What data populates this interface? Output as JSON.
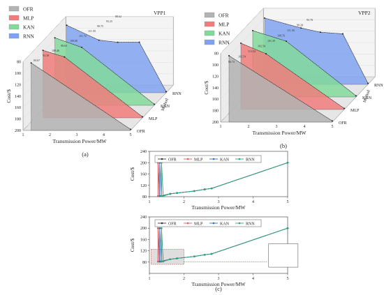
{
  "chart_data": [
    {
      "type": "area",
      "panel": "a",
      "title": "VPP1",
      "xlabel": "Transmission Power/MW",
      "ylabel": "Cost/$",
      "zlabel": "Method",
      "xlim": [
        1,
        5
      ],
      "ylim": [
        80,
        200
      ],
      "x_ticks": [
        "1",
        "2",
        "3",
        "4",
        "5"
      ],
      "y_ticks": [
        "80",
        "100",
        "120",
        "140",
        "160",
        "180",
        "200"
      ],
      "methods": [
        "OFR",
        "MLP",
        "KAN",
        "RNN"
      ],
      "colors": [
        "#b3b3b3",
        "#f07c7c",
        "#82d99b",
        "#7fa2f0"
      ],
      "series": [
        {
          "name": "OFR",
          "x": [
            1.3,
            5.0
          ],
          "y": [
            82,
            198
          ]
        },
        {
          "name": "MLP",
          "x": [
            1.3,
            2.1,
            5.0
          ],
          "y": [
            82,
            93.38,
            198
          ]
        },
        {
          "name": "KAN",
          "x": [
            1.3,
            2.3,
            5.0
          ],
          "y": [
            82,
            98.63,
            198
          ]
        },
        {
          "name": "RNN",
          "x": [
            1.3,
            2.5,
            3.2,
            4.0,
            5.0
          ],
          "y": [
            82,
            108.08,
            111.72,
            111.59,
            198
          ]
        }
      ],
      "labels": [
        "84.67",
        "93.38",
        "108.46",
        "98.63",
        "108.08",
        "111.72",
        "111.59",
        "99.75",
        "93.25",
        "88.62"
      ],
      "legend": "top-left"
    },
    {
      "type": "area",
      "panel": "b",
      "title": "VPP2",
      "xlabel": "Transmission Power/MW",
      "ylabel": "Cost/$",
      "zlabel": "Method",
      "xlim": [
        1,
        5
      ],
      "ylim": [
        80,
        200
      ],
      "x_ticks": [
        "1",
        "2",
        "3",
        "4",
        "5"
      ],
      "y_ticks": [
        "80",
        "100",
        "120",
        "140",
        "160",
        "180",
        "200"
      ],
      "methods": [
        "OFR",
        "MLP",
        "KAN",
        "RNN"
      ],
      "colors": [
        "#b3b3b3",
        "#f07c7c",
        "#82d99b",
        "#7fa2f0"
      ],
      "series": [
        {
          "name": "OFR",
          "x": [
            1.3,
            5.0
          ],
          "y": [
            84,
            198
          ]
        },
        {
          "name": "MLP",
          "x": [
            1.3,
            2.2,
            5.0
          ],
          "y": [
            84,
            102.54,
            198
          ]
        },
        {
          "name": "KAN",
          "x": [
            1.3,
            2.5,
            5.0
          ],
          "y": [
            84,
            102.54,
            198
          ]
        },
        {
          "name": "RNN",
          "x": [
            1.3,
            2.6,
            3.3,
            4.1,
            5.0
          ],
          "y": [
            84,
            101.39,
            108.76,
            111.56,
            198
          ]
        }
      ],
      "labels": [
        "86.72",
        "102.54",
        "113.54",
        "102.54",
        "101.39",
        "108.76",
        "111.56",
        "99.28",
        "95.78"
      ],
      "legend": "top-left"
    },
    {
      "type": "line",
      "panel": "c-top",
      "xlabel": "Transmission Power/MW",
      "ylabel": "Cost/$",
      "xlim": [
        1,
        5
      ],
      "ylim": [
        80,
        240
      ],
      "x_ticks": [
        "1",
        "2",
        "3",
        "4",
        "5"
      ],
      "y_ticks": [
        "80",
        "120",
        "160",
        "200",
        "240"
      ],
      "legend": "top",
      "series": [
        {
          "name": "OFR",
          "color": "#333333",
          "x": [
            1.25,
            1.25,
            1.3,
            1.6,
            1.8,
            2.3,
            2.6,
            2.8,
            5.0
          ],
          "y": [
            82,
            200,
            82,
            90,
            93,
            100,
            106,
            109,
            200
          ]
        },
        {
          "name": "MLP",
          "color": "#e45a5a",
          "x": [
            1.25,
            1.25,
            1.3,
            1.6,
            1.8,
            2.3,
            2.6,
            2.8,
            5.0
          ],
          "y": [
            82,
            200,
            82,
            90,
            93,
            100,
            106,
            109,
            200
          ]
        },
        {
          "name": "KAN",
          "color": "#2d6fb8",
          "x": [
            1.3,
            1.3,
            1.35,
            1.6,
            1.8,
            2.3,
            2.6,
            2.8,
            5.0
          ],
          "y": [
            82,
            200,
            82,
            90,
            93,
            100,
            106,
            109,
            200
          ]
        },
        {
          "name": "RNN",
          "color": "#2aa67a",
          "x": [
            1.35,
            1.35,
            1.4,
            1.6,
            1.8,
            2.3,
            2.6,
            2.8,
            5.0
          ],
          "y": [
            82,
            200,
            82,
            90,
            93,
            100,
            106,
            109,
            200
          ]
        }
      ]
    },
    {
      "type": "line",
      "panel": "c-bottom",
      "xlabel": "Transmission Power/MW",
      "ylabel": "Cost/$",
      "xlim": [
        1,
        5
      ],
      "ylim": [
        40,
        240
      ],
      "x_ticks": [
        "1",
        "2",
        "3",
        "4",
        "5"
      ],
      "y_ticks": [
        "80",
        "120",
        "160",
        "200",
        "240"
      ],
      "legend": "top",
      "series": [
        {
          "name": "OFR",
          "color": "#333333",
          "x": [
            1.25,
            1.25,
            1.3,
            1.6,
            1.8,
            2.3,
            2.6,
            2.8,
            5.0
          ],
          "y": [
            82,
            200,
            82,
            90,
            93,
            100,
            106,
            109,
            200
          ]
        },
        {
          "name": "MLP",
          "color": "#e45a5a",
          "x": [
            1.25,
            1.25,
            1.3,
            1.6,
            1.8,
            2.3,
            2.6,
            2.8,
            5.0
          ],
          "y": [
            82,
            200,
            82,
            90,
            93,
            100,
            106,
            109,
            200
          ]
        },
        {
          "name": "KAN",
          "color": "#2d6fb8",
          "x": [
            1.3,
            1.3,
            1.35,
            1.6,
            1.8,
            2.3,
            2.6,
            2.8,
            5.0
          ],
          "y": [
            82,
            200,
            82,
            90,
            93,
            100,
            106,
            109,
            200
          ]
        },
        {
          "name": "RNN",
          "color": "#2aa67a",
          "x": [
            1.35,
            1.35,
            1.4,
            1.6,
            1.8,
            2.3,
            2.6,
            2.8,
            5.0
          ],
          "y": [
            82,
            200,
            82,
            90,
            93,
            100,
            106,
            109,
            200
          ]
        }
      ]
    }
  ],
  "captions": {
    "a": "(a)",
    "b": "(b)",
    "c": "(c)"
  }
}
